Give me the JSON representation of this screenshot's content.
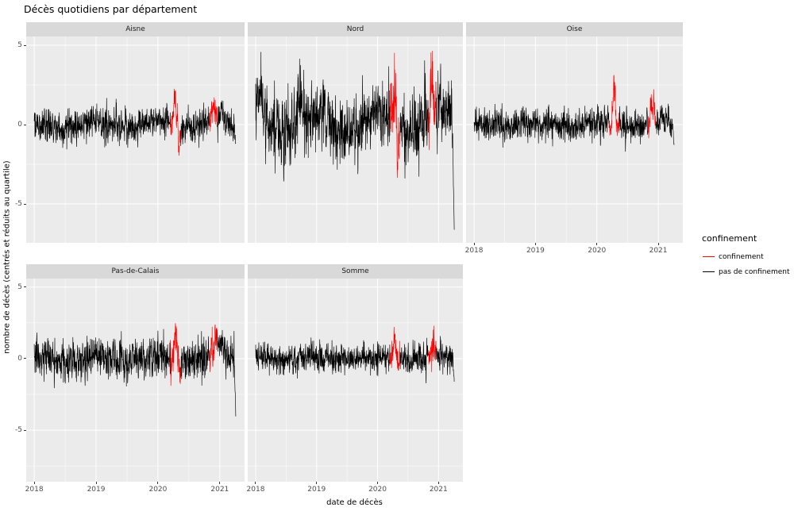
{
  "title": "Décès quotidiens par département",
  "axes": {
    "x_title": "date de décès",
    "y_title": "nombre de décès (centrés et réduits au quartile)",
    "x_ticks": [
      "2018",
      "2019",
      "2020",
      "2021"
    ],
    "y_ticks": [
      "5",
      "0",
      "-5"
    ]
  },
  "legend": {
    "title": "confinement",
    "entries": [
      {
        "label": "confinement",
        "color": "#FF0000"
      },
      {
        "label": "pas de confinement",
        "color": "#000000"
      }
    ]
  },
  "colors": {
    "panel_bg": "#EBEBEB",
    "strip_bg": "#D9D9D9",
    "grid_major": "#FFFFFF",
    "grid_minor": "#FFFFFF",
    "tick_text": "#4D4D4D",
    "series_default": "#000000",
    "series_confinement": "#FF0000"
  },
  "chart_data": {
    "type": "line",
    "title": "Décès quotidiens par département",
    "xlabel": "date de décès",
    "ylabel": "nombre de décès (centrés et réduits au quartile)",
    "x_tick_values": [
      2018,
      2019,
      2020,
      2021
    ],
    "y_tick_values": [
      5,
      0,
      -5
    ],
    "x_range": [
      2017.87,
      2021.4
    ],
    "data_span": [
      2018.0,
      2021.26
    ],
    "ylim_rows": [
      [
        -7.45,
        5.55
      ],
      [
        -8.6,
        5.6
      ]
    ],
    "sampling": "daily",
    "grid": true,
    "legend_position": "right",
    "lockdown_periods": [
      [
        2020.205,
        2020.365
      ],
      [
        2020.835,
        2020.955
      ]
    ],
    "end_drop_start": 2021.23,
    "facets": [
      {
        "name": "Aisne",
        "row": 0,
        "seed": 101,
        "noise_sd": 0.5,
        "seasonal_amp": 0.12,
        "baseline": 0,
        "approx_min": -2.4,
        "approx_max": 3.0,
        "end_value": -1.3,
        "spikes": [
          {
            "x": 2020.27,
            "amp": 2.4,
            "w": 0.02
          },
          {
            "x": 2020.34,
            "amp": -1.4,
            "w": 0.015
          },
          {
            "x": 2020.91,
            "amp": 1.2,
            "w": 0.03
          },
          {
            "x": 2021.02,
            "amp": 1.3,
            "w": 0.02
          }
        ]
      },
      {
        "name": "Nord",
        "row": 0,
        "seed": 202,
        "noise_sd": 1.0,
        "seasonal_amp": 0.5,
        "baseline": 0,
        "approx_min": -3.6,
        "approx_max": 5.35,
        "end_value": -7.4,
        "spikes": [
          {
            "x": 2018.07,
            "amp": 2.2,
            "w": 0.03
          },
          {
            "x": 2018.75,
            "amp": 1.2,
            "w": 0.06
          },
          {
            "x": 2019.12,
            "amp": 1.0,
            "w": 0.04
          },
          {
            "x": 2020.27,
            "amp": 2.8,
            "w": 0.02
          },
          {
            "x": 2020.34,
            "amp": -1.5,
            "w": 0.015
          },
          {
            "x": 2020.78,
            "amp": 3.0,
            "w": 0.006
          },
          {
            "x": 2020.89,
            "amp": 3.2,
            "w": 0.025
          },
          {
            "x": 2021.0,
            "amp": 1.0,
            "w": 0.03
          }
        ]
      },
      {
        "name": "Oise",
        "row": 0,
        "seed": 303,
        "noise_sd": 0.48,
        "seasonal_amp": 0.1,
        "baseline": 0,
        "approx_min": -2.0,
        "approx_max": 3.1,
        "end_value": -1.4,
        "spikes": [
          {
            "x": 2020.28,
            "amp": 2.7,
            "w": 0.018
          },
          {
            "x": 2020.9,
            "amp": 1.3,
            "w": 0.03
          },
          {
            "x": 2021.05,
            "amp": 0.9,
            "w": 0.015
          }
        ]
      },
      {
        "name": "Pas-de-Calais",
        "row": 1,
        "seed": 404,
        "noise_sd": 0.7,
        "seasonal_amp": 0.22,
        "baseline": 0,
        "approx_min": -2.9,
        "approx_max": 2.8,
        "end_value": -4.3,
        "spikes": [
          {
            "x": 2020.28,
            "amp": 1.9,
            "w": 0.022
          },
          {
            "x": 2020.35,
            "amp": -1.2,
            "w": 0.015
          },
          {
            "x": 2020.93,
            "amp": 2.0,
            "w": 0.04
          },
          {
            "x": 2021.05,
            "amp": 1.2,
            "w": 0.03
          }
        ]
      },
      {
        "name": "Somme",
        "row": 1,
        "seed": 505,
        "noise_sd": 0.5,
        "seasonal_amp": 0.1,
        "baseline": 0,
        "approx_min": -2.0,
        "approx_max": 2.3,
        "end_value": -1.7,
        "spikes": [
          {
            "x": 2020.28,
            "amp": 1.6,
            "w": 0.018
          },
          {
            "x": 2020.92,
            "amp": 1.3,
            "w": 0.025
          }
        ]
      }
    ]
  }
}
